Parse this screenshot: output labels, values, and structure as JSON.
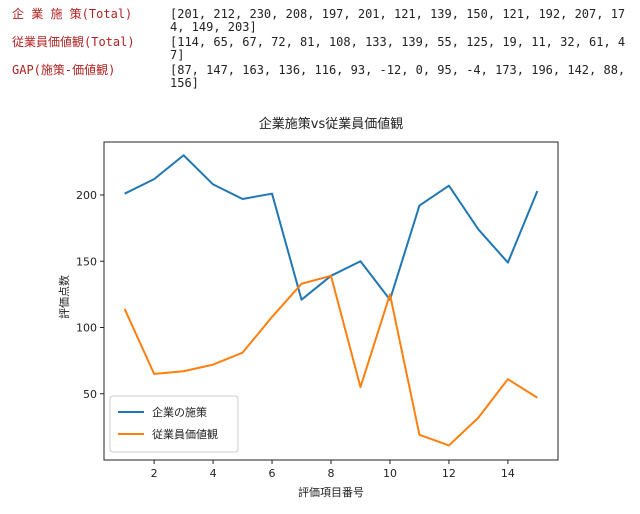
{
  "printout": [
    {
      "label": "企 業 施 策(Total)",
      "value": "[201, 212, 230, 208, 197, 201, 121, 139, 150, 121, 192, 207, 174, 149, 203]"
    },
    {
      "label": "従業員価値観(Total)",
      "value": "[114, 65, 67, 72, 81, 108, 133, 139, 55, 125, 19, 11, 32, 61, 47]"
    },
    {
      "label": "GAP(施策-価値観)",
      "value": "[87, 147, 163, 136, 116, 93, -12, 0, 95, -4, 173, 196, 142, 88, 156]"
    }
  ],
  "chart_data": {
    "type": "line",
    "title": "企業施策vs従業員価値観",
    "xlabel": "評価項目番号",
    "ylabel": "評価点数",
    "x": [
      1,
      2,
      3,
      4,
      5,
      6,
      7,
      8,
      9,
      10,
      11,
      12,
      13,
      14,
      15
    ],
    "xticks": [
      2,
      4,
      6,
      8,
      10,
      12,
      14
    ],
    "yticks": [
      50,
      100,
      150,
      200
    ],
    "xlim": [
      0.3,
      15.7
    ],
    "ylim": [
      0,
      240
    ],
    "grid": false,
    "legend_position": "lower-left",
    "series": [
      {
        "name": "企業の施策",
        "color": "#1f77b4",
        "values": [
          201,
          212,
          230,
          208,
          197,
          201,
          121,
          139,
          150,
          121,
          192,
          207,
          174,
          149,
          203
        ]
      },
      {
        "name": "従業員価値観",
        "color": "#ff7f0e",
        "values": [
          114,
          65,
          67,
          72,
          81,
          108,
          133,
          139,
          55,
          125,
          19,
          11,
          32,
          61,
          47
        ]
      }
    ]
  }
}
